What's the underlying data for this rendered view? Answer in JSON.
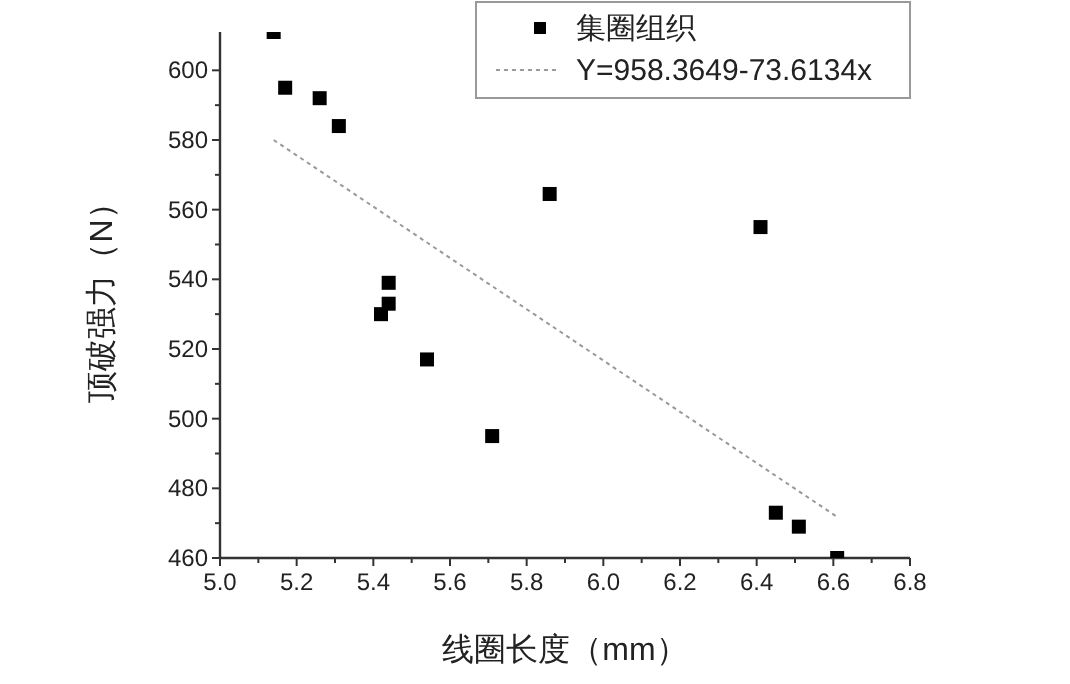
{
  "chart_data": {
    "type": "scatter",
    "xlabel": "线圈长度（mm）",
    "ylabel": "顶破强力（N）",
    "xlim": [
      5.0,
      6.8
    ],
    "ylim": [
      460,
      611
    ],
    "xticks": [
      {
        "value": 5.0,
        "label": "5.0"
      },
      5.2,
      5.4,
      5.6,
      5.8,
      {
        "value": 6.0,
        "label": "6.0"
      },
      6.2,
      6.4,
      6.6,
      6.8
    ],
    "yticks": [
      460,
      480,
      500,
      520,
      540,
      560,
      580,
      600
    ],
    "grid": false,
    "legend": "top right",
    "series": [
      {
        "name": "集圈组织",
        "marker": "square",
        "color": "#000000",
        "x": [
          5.14,
          5.17,
          5.26,
          5.31,
          5.44,
          5.44,
          5.42,
          5.54,
          5.71,
          5.86,
          6.41,
          6.45,
          6.51,
          6.61
        ],
        "values": [
          611,
          595,
          592,
          584,
          539,
          533,
          530,
          517,
          495,
          564.5,
          555,
          473,
          469,
          460
        ]
      },
      {
        "name": "Y=958.3649-73.6134x",
        "type": "line",
        "line_style": "dotted",
        "color": "#999999",
        "x": [
          5.14,
          6.61
        ],
        "values": [
          580.0,
          471.8
        ]
      }
    ]
  }
}
